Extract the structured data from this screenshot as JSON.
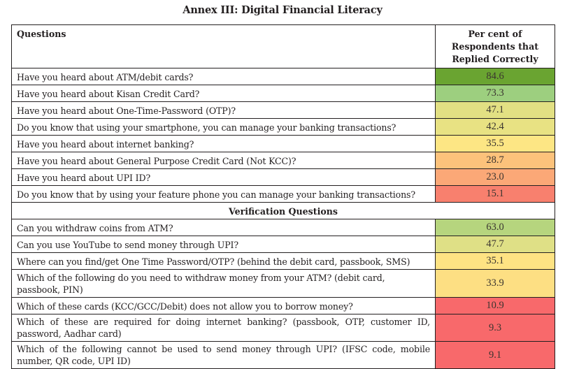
{
  "title": "Annex III: Digital Financial Literacy",
  "table": {
    "headers": {
      "question": "Questions",
      "value": "Per cent of Respondents that Replied Correctly"
    },
    "rows": [
      {
        "question": "Have you heard about ATM/debit cards?",
        "value": "84.6",
        "color": "#6aa431"
      },
      {
        "question": "Have you heard about Kisan Credit Card?",
        "value": "73.3",
        "color": "#9dcf7f"
      },
      {
        "question": "Have you heard about One-Time-Password (OTP)?",
        "value": "47.1",
        "color": "#e2e083"
      },
      {
        "question": "Do you know that using your smartphone, you can manage your banking transactions?",
        "value": "42.4",
        "color": "#e8e283"
      },
      {
        "question": "Have you heard about internet banking?",
        "value": "35.5",
        "color": "#fde684"
      },
      {
        "question": "Have you heard about General Purpose Credit Card (Not KCC)?",
        "value": "28.7",
        "color": "#fcc27b"
      },
      {
        "question": "Have you heard about UPI ID?",
        "value": "23.0",
        "color": "#fba877"
      },
      {
        "question": "Do you know that by using your feature phone you can manage your banking transactions?",
        "value": "15.1",
        "color": "#f8806e"
      }
    ],
    "section_title": "Verification Questions",
    "verification_rows": [
      {
        "question": "Can you withdraw coins from ATM?",
        "value": "63.0",
        "color": "#b6d57e"
      },
      {
        "question": "Can you use YouTube to send money through UPI?",
        "value": "47.7",
        "color": "#dfe086"
      },
      {
        "question": "Where can you find/get One Time Password/OTP? (behind the debit card, passbook, SMS)",
        "value": "35.1",
        "color": "#fee383"
      },
      {
        "question": "Which of the following do you need to withdraw money from your ATM? (debit card, passbook, PIN)",
        "value": "33.9",
        "color": "#fddf83"
      },
      {
        "question": "Which of these cards (KCC/GCC/Debit) does not allow you to borrow money?",
        "value": "10.9",
        "color": "#f8696b"
      },
      {
        "question": "Which of these are required for doing internet banking? (passbook, OTP, customer ID, password, Aadhar card)",
        "value": "9.3",
        "color": "#f8696b"
      },
      {
        "question": "Which of the following cannot be used to send money through UPI? (IFSC code, mobile number, QR code, UPI ID)",
        "value": "9.1",
        "color": "#f8696b"
      }
    ]
  }
}
